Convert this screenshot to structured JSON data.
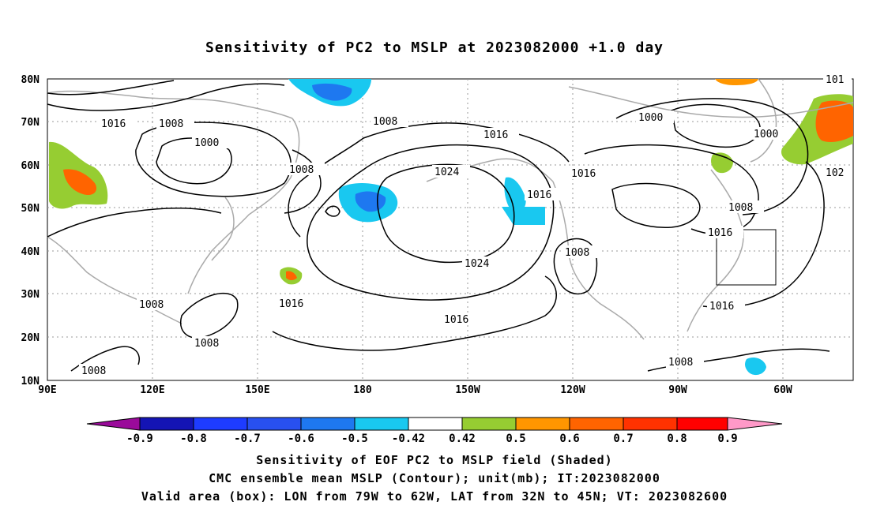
{
  "title": "Sensitivity of PC2 to MSLP at 2023082000 +1.0 day",
  "map": {
    "lat_labels": [
      "80N",
      "70N",
      "60N",
      "50N",
      "40N",
      "30N",
      "20N",
      "10N"
    ],
    "lon_labels": [
      "90E",
      "120E",
      "150E",
      "180",
      "150W",
      "120W",
      "90W",
      "60W"
    ],
    "contour_labels": [
      {
        "text": "1016"
      },
      {
        "text": "1008"
      },
      {
        "text": "1000"
      },
      {
        "text": "1008"
      },
      {
        "text": "1008"
      },
      {
        "text": "1016"
      },
      {
        "text": "1024"
      },
      {
        "text": "1016"
      },
      {
        "text": "1016"
      },
      {
        "text": "1000"
      },
      {
        "text": "1000"
      },
      {
        "text": "101"
      },
      {
        "text": "102"
      },
      {
        "text": "1008"
      },
      {
        "text": "1016"
      },
      {
        "text": "1008"
      },
      {
        "text": "1024"
      },
      {
        "text": "1016"
      },
      {
        "text": "1008"
      },
      {
        "text": "1016"
      },
      {
        "text": "1008"
      },
      {
        "text": "1008"
      },
      {
        "text": "1016"
      },
      {
        "text": "1008"
      }
    ],
    "colors": {
      "coast": "#aaaaaa",
      "contour": "#000000",
      "grid": "#999999"
    },
    "valid_box": {
      "lon_from": "79W",
      "lon_to": "62W",
      "lat_from": "32N",
      "lat_to": "45N"
    }
  },
  "colorbar": {
    "labels": [
      "-0.9",
      "-0.8",
      "-0.7",
      "-0.6",
      "-0.5",
      "-0.42",
      "0.42",
      "0.5",
      "0.6",
      "0.7",
      "0.8",
      "0.9"
    ],
    "colors": [
      "#9a0a9a",
      "#1414b4",
      "#1e3cff",
      "#2850f0",
      "#1e78f0",
      "#19c8f0",
      "#ffffff",
      "#96cd32",
      "#ff9600",
      "#ff6400",
      "#ff3200",
      "#ff0000",
      "#ff99c8"
    ]
  },
  "captions": [
    "Sensitivity of EOF PC2 to MSLP field (Shaded)",
    "CMC ensemble mean MSLP (Contour); unit(mb); IT:2023082000",
    "Valid area (box): LON from 79W to 62W, LAT from 32N to 45N; VT: 2023082600"
  ]
}
